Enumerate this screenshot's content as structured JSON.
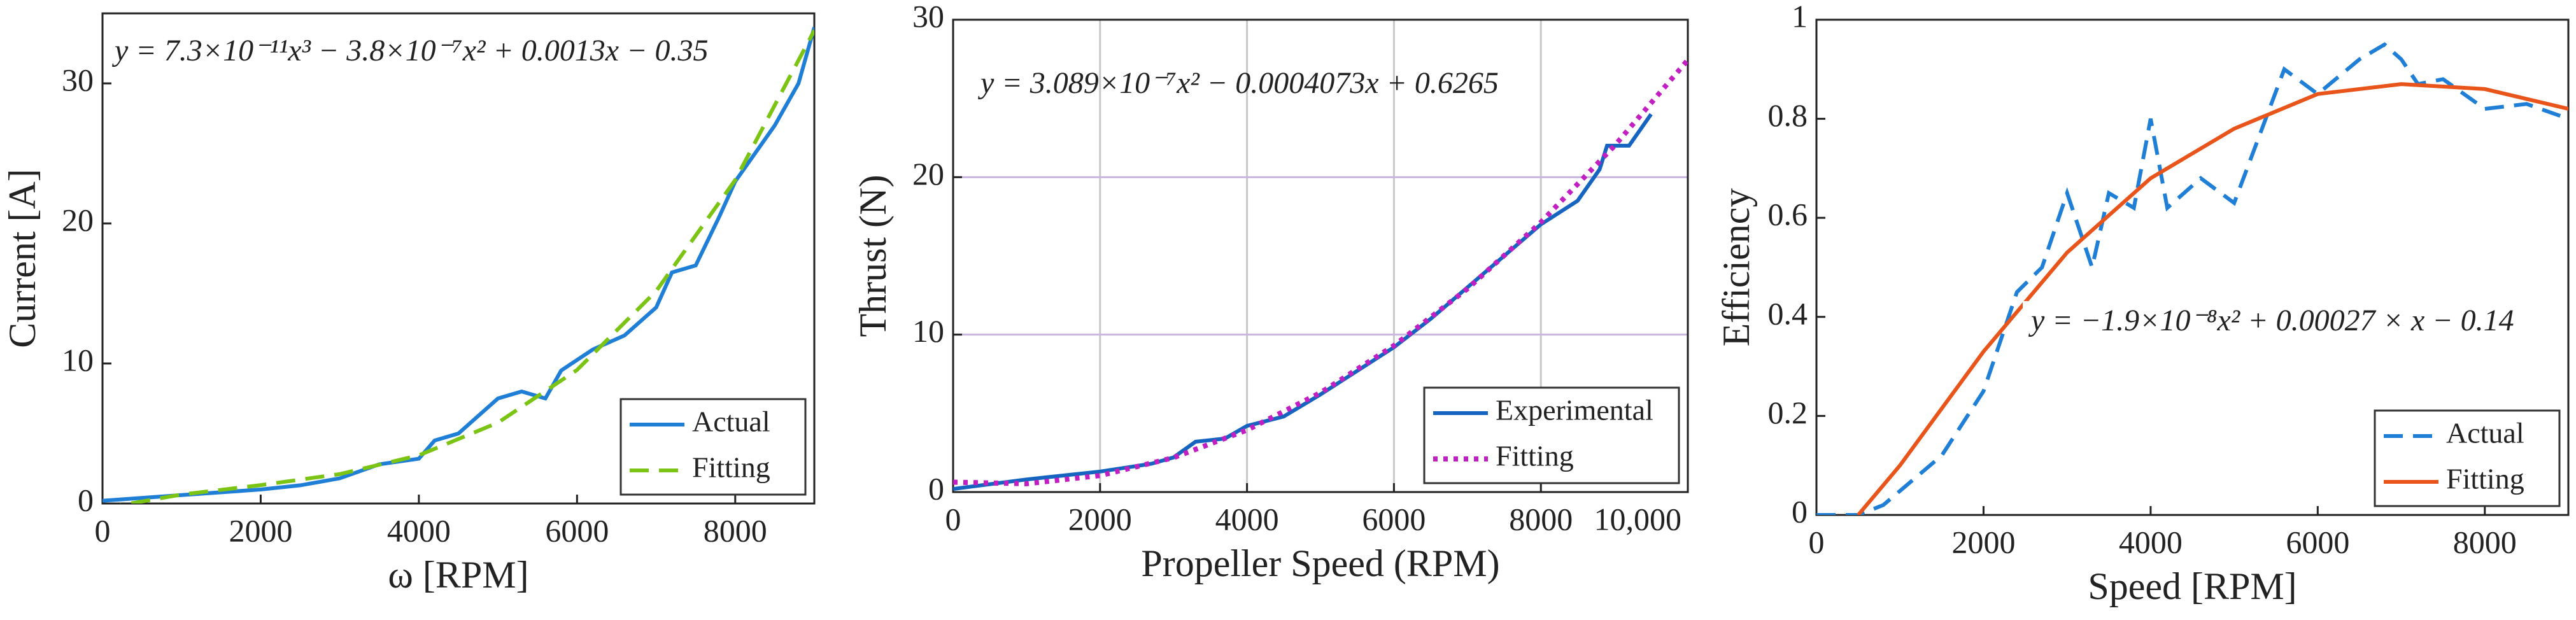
{
  "chart_data": [
    {
      "type": "line",
      "xlabel": "ω [RPM]",
      "ylabel": "Current [A]",
      "annotation": "y = 7.3×10⁻¹¹x³ − 3.8×10⁻⁷x² + 0.0013x − 0.35",
      "xlim": [
        0,
        9000
      ],
      "ylim": [
        0,
        35
      ],
      "xticks": [
        0,
        2000,
        4000,
        6000,
        8000
      ],
      "yticks": [
        0,
        10,
        20,
        30
      ],
      "grid": false,
      "legend": "lower right",
      "series": [
        {
          "name": "Actual",
          "color": "#1f7fd6",
          "style": "solid",
          "x": [
            0,
            1000,
            2000,
            2500,
            3000,
            3500,
            4000,
            4200,
            4500,
            5000,
            5300,
            5600,
            5800,
            6200,
            6600,
            7000,
            7200,
            7500,
            7800,
            8000,
            8500,
            8800,
            9000
          ],
          "values": [
            0.2,
            0.6,
            1.0,
            1.3,
            1.8,
            2.8,
            3.2,
            4.5,
            5,
            7.5,
            8,
            7.5,
            9.5,
            11,
            12,
            14,
            16.5,
            17,
            20.5,
            23,
            27,
            30,
            34
          ]
        },
        {
          "name": "Fitting",
          "color": "#7cc414",
          "style": "dashed",
          "x": [
            0,
            1000,
            2000,
            3000,
            4000,
            5000,
            6000,
            7000,
            8000,
            9000
          ],
          "values": [
            -0.35,
            0.643,
            1.314,
            2.101,
            3.442,
            5.775,
            9.538,
            15.169,
            23.106,
            33.787
          ]
        }
      ]
    },
    {
      "type": "line",
      "xlabel": "Propeller Speed (RPM)",
      "ylabel": "Thrust (N)",
      "annotation": "y = 3.089×10⁻⁷x² − 0.0004073x + 0.6265",
      "xlim": [
        0,
        10000
      ],
      "ylim": [
        0,
        30
      ],
      "xticks": [
        0,
        2000,
        4000,
        6000,
        8000,
        {
          "value": 10000,
          "label": "10,000"
        }
      ],
      "yticks": [
        0,
        10,
        20,
        30
      ],
      "grid": true,
      "legend": "lower right",
      "series": [
        {
          "name": "Experimental",
          "color": "#1565c0",
          "style": "solid",
          "x": [
            0,
            1000,
            2000,
            2700,
            3000,
            3300,
            3700,
            4000,
            4500,
            5000,
            6000,
            6500,
            7000,
            7500,
            8000,
            8500,
            8800,
            8900,
            9200,
            9500
          ],
          "values": [
            0.2,
            0.8,
            1.3,
            1.8,
            2.2,
            3.2,
            3.4,
            4.2,
            4.8,
            6.2,
            9.2,
            11,
            13,
            15,
            17,
            18.5,
            20.5,
            22,
            22,
            24
          ]
        },
        {
          "name": "Fitting",
          "color": "#c21fc2",
          "style": "dotted",
          "x": [
            0,
            1000,
            2000,
            3000,
            4000,
            5000,
            6000,
            7000,
            8000,
            9000,
            10000
          ],
          "values": [
            0.6265,
            0.5281,
            1.0475,
            2.1847,
            3.9397,
            6.3125,
            9.3029,
            12.9115,
            17.1377,
            21.9817,
            27.4435
          ]
        }
      ]
    },
    {
      "type": "line",
      "xlabel": "Speed [RPM]",
      "ylabel": "Efficiency",
      "annotation": "y = −1.9×10⁻⁸x² + 0.00027 × x − 0.14",
      "xlim": [
        0,
        9000
      ],
      "ylim": [
        0,
        1
      ],
      "xticks": [
        0,
        2000,
        4000,
        6000,
        8000
      ],
      "yticks": [
        0,
        0.2,
        0.4,
        0.6,
        0.8,
        1
      ],
      "grid": false,
      "legend": "lower right",
      "series": [
        {
          "name": "Actual",
          "color": "#1f7fd6",
          "style": "dashed",
          "x": [
            0,
            500,
            800,
            1500,
            2000,
            2400,
            2700,
            3000,
            3300,
            3500,
            3800,
            4000,
            4200,
            4600,
            5000,
            5600,
            6000,
            6500,
            6800,
            7000,
            7200,
            7500,
            8000,
            8500,
            9000
          ],
          "values": [
            0,
            0,
            0.02,
            0.12,
            0.25,
            0.45,
            0.5,
            0.65,
            0.5,
            0.65,
            0.62,
            0.8,
            0.62,
            0.68,
            0.63,
            0.9,
            0.85,
            0.92,
            0.95,
            0.92,
            0.87,
            0.88,
            0.82,
            0.83,
            0.8
          ]
        },
        {
          "name": "Fitting",
          "color": "#e8541a",
          "style": "solid",
          "x": [
            500,
            1000,
            2000,
            3000,
            4000,
            5000,
            6000,
            7000,
            8000,
            9000
          ],
          "values": [
            0,
            0.1,
            0.33,
            0.53,
            0.68,
            0.78,
            0.85,
            0.87,
            0.86,
            0.82
          ]
        }
      ]
    }
  ]
}
